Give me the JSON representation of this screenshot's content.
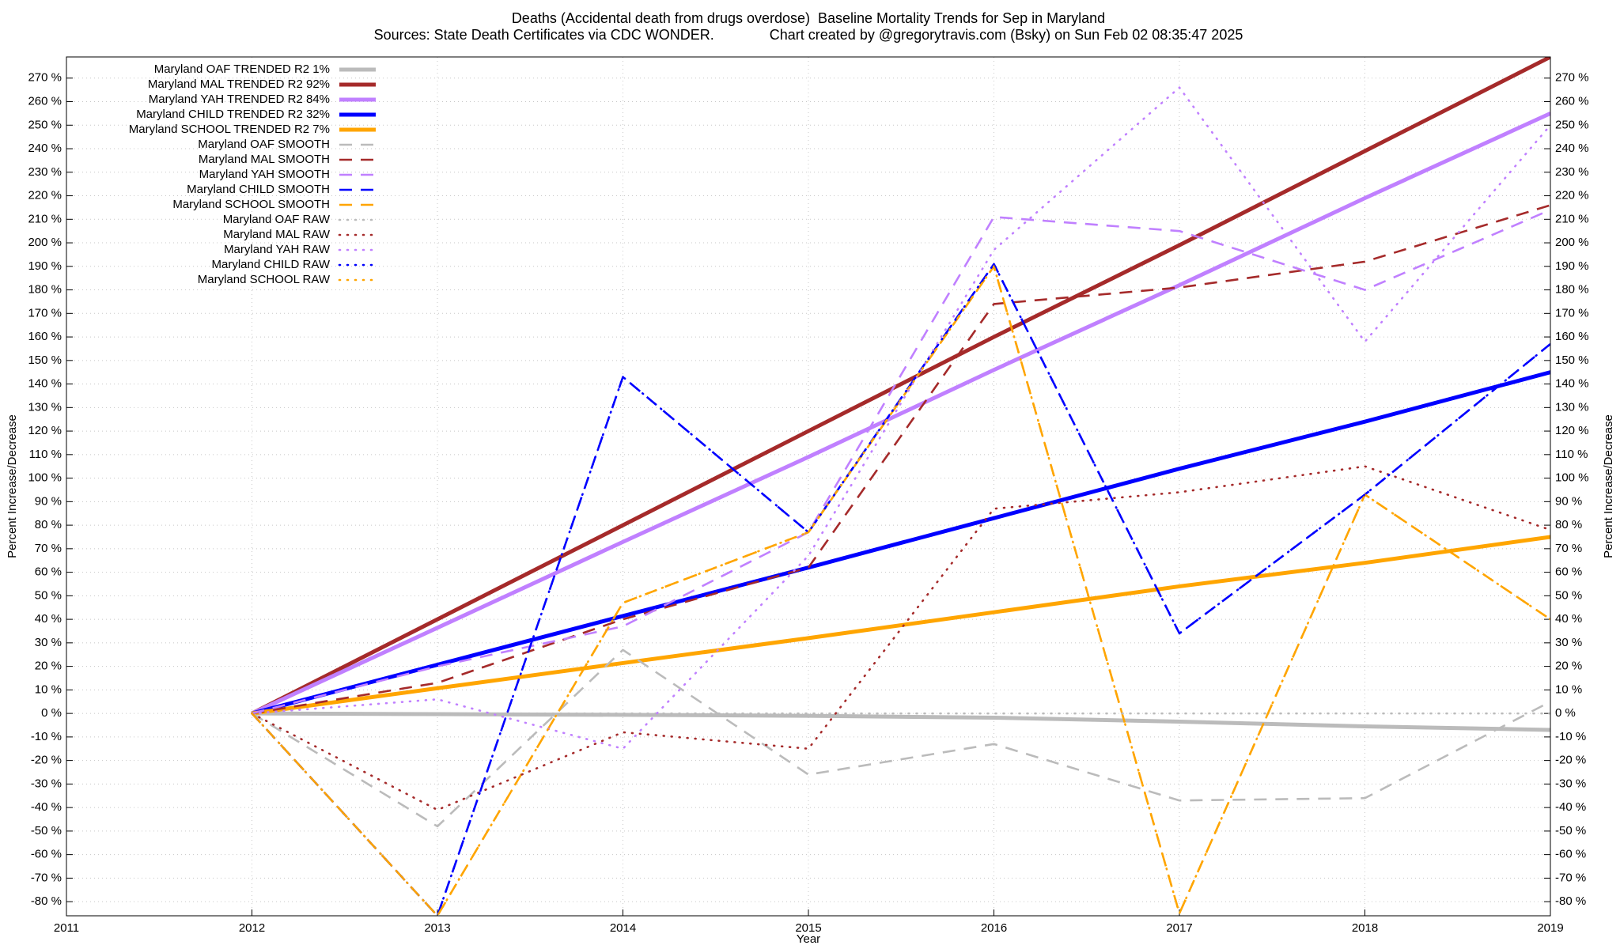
{
  "chart_data": {
    "type": "line",
    "title": "Deaths (Accidental death from drugs overdose)  Baseline Mortality Trends for Sep in Maryland",
    "subtitle": "Sources: State Death Certificates via CDC WONDER.              Chart created by @gregorytravis.com (Bsky) on Sun Feb 02 08:35:47 2025",
    "x_label": "Year",
    "y_label": "Percent Increase/Decrease",
    "y2_label": "Percent Increase/Decrease",
    "x": [
      2012,
      2013,
      2014,
      2015,
      2016,
      2017,
      2018,
      2019
    ],
    "xlim": [
      2011,
      2019
    ],
    "xticks": [
      2011,
      2012,
      2013,
      2014,
      2015,
      2016,
      2017,
      2018,
      2019
    ],
    "ylim": [
      -86,
      279
    ],
    "y2lim": [
      -86,
      279
    ],
    "yticks": [
      {
        "value": -80,
        "label": "-80 %"
      },
      {
        "value": -70,
        "label": "-70 %"
      },
      {
        "value": -60,
        "label": "-60 %"
      },
      {
        "value": -50,
        "label": "-50 %"
      },
      {
        "value": -40,
        "label": "-40 %"
      },
      {
        "value": -30,
        "label": "-30 %"
      },
      {
        "value": -20,
        "label": "-20 %"
      },
      {
        "value": -10,
        "label": "-10 %"
      },
      {
        "value": 0,
        "label": "0 %"
      },
      {
        "value": 10,
        "label": "10 %"
      },
      {
        "value": 20,
        "label": "20 %"
      },
      {
        "value": 30,
        "label": "30 %"
      },
      {
        "value": 40,
        "label": "40 %"
      },
      {
        "value": 50,
        "label": "50 %"
      },
      {
        "value": 60,
        "label": "60 %"
      },
      {
        "value": 70,
        "label": "70 %"
      },
      {
        "value": 80,
        "label": "80 %"
      },
      {
        "value": 90,
        "label": "90 %"
      },
      {
        "value": 100,
        "label": "100 %"
      },
      {
        "value": 110,
        "label": "110 %"
      },
      {
        "value": 120,
        "label": "120 %"
      },
      {
        "value": 130,
        "label": "130 %"
      },
      {
        "value": 140,
        "label": "140 %"
      },
      {
        "value": 150,
        "label": "150 %"
      },
      {
        "value": 160,
        "label": "160 %"
      },
      {
        "value": 170,
        "label": "170 %"
      },
      {
        "value": 180,
        "label": "180 %"
      },
      {
        "value": 190,
        "label": "190 %"
      },
      {
        "value": 200,
        "label": "200 %"
      },
      {
        "value": 210,
        "label": "210 %"
      },
      {
        "value": 220,
        "label": "220 %"
      },
      {
        "value": 230,
        "label": "230 %"
      },
      {
        "value": 240,
        "label": "240 %"
      },
      {
        "value": 250,
        "label": "250 %"
      },
      {
        "value": 260,
        "label": "260 %"
      },
      {
        "value": 270,
        "label": "270 %"
      }
    ],
    "y2ticks": [
      {
        "value": -80,
        "label": "-80 %"
      },
      {
        "value": -70,
        "label": "-70 %"
      },
      {
        "value": -60,
        "label": "-60 %"
      },
      {
        "value": -50,
        "label": "-50 %"
      },
      {
        "value": -40,
        "label": "-40 %"
      },
      {
        "value": -30,
        "label": "-30 %"
      },
      {
        "value": -20,
        "label": "-20 %"
      },
      {
        "value": -10,
        "label": "-10 %"
      },
      {
        "value": 0,
        "label": "0 %"
      },
      {
        "value": 10,
        "label": "10 %"
      },
      {
        "value": 20,
        "label": "20 %"
      },
      {
        "value": 30,
        "label": "30 %"
      },
      {
        "value": 40,
        "label": "40 %"
      },
      {
        "value": 50,
        "label": "50 %"
      },
      {
        "value": 60,
        "label": "60 %"
      },
      {
        "value": 70,
        "label": "70 %"
      },
      {
        "value": 80,
        "label": "80 %"
      },
      {
        "value": 90,
        "label": "90 %"
      },
      {
        "value": 100,
        "label": "100 %"
      },
      {
        "value": 110,
        "label": "110 %"
      },
      {
        "value": 120,
        "label": "120 %"
      },
      {
        "value": 130,
        "label": "130 %"
      },
      {
        "value": 140,
        "label": "140 %"
      },
      {
        "value": 150,
        "label": "150 %"
      },
      {
        "value": 160,
        "label": "160 %"
      },
      {
        "value": 170,
        "label": "170 %"
      },
      {
        "value": 180,
        "label": "180 %"
      },
      {
        "value": 190,
        "label": "190 %"
      },
      {
        "value": 200,
        "label": "200 %"
      },
      {
        "value": 210,
        "label": "210 %"
      },
      {
        "value": 220,
        "label": "220 %"
      },
      {
        "value": 230,
        "label": "230 %"
      },
      {
        "value": 240,
        "label": "240 %"
      },
      {
        "value": 250,
        "label": "250 %"
      },
      {
        "value": 260,
        "label": "260 %"
      },
      {
        "value": 270,
        "label": "270 %"
      }
    ],
    "grid": true,
    "legend": "upper left",
    "series": [
      {
        "name": "Maryland OAF TRENDED R2  1%",
        "color": "#bbbbbb",
        "dash": "solid",
        "values": [
          0,
          -0.3,
          -0.6,
          -1,
          -1.8,
          -3.5,
          -5.5,
          -7
        ]
      },
      {
        "name": "Maryland MAL TRENDED R2  92%",
        "color": "#a52a2a",
        "dash": "solid",
        "values": [
          0,
          40,
          80,
          120,
          160,
          199,
          239,
          279
        ]
      },
      {
        "name": "Maryland YAH TRENDED R2  84%",
        "color": "#c080ff",
        "dash": "solid",
        "values": [
          0,
          36.4,
          72.9,
          109,
          146,
          182,
          219,
          255
        ]
      },
      {
        "name": "Maryland CHILD TRENDED R2  32%",
        "color": "#0000ff",
        "dash": "solid",
        "values": [
          0,
          20.7,
          41.4,
          62,
          83,
          104,
          124,
          145
        ]
      },
      {
        "name": "Maryland SCHOOL TRENDED R2  7%",
        "color": "#ffa500",
        "dash": "solid",
        "values": [
          0,
          10.7,
          21.4,
          32,
          43,
          54,
          64,
          75
        ]
      },
      {
        "name": "Maryland OAF SMOOTH",
        "color": "#bbbbbb",
        "dash": "dashed",
        "values": [
          0,
          -48,
          27,
          -26,
          -13,
          -37,
          -36,
          5
        ]
      },
      {
        "name": "Maryland MAL SMOOTH",
        "color": "#a52a2a",
        "dash": "dashed",
        "values": [
          0,
          13,
          40,
          62,
          174,
          181,
          192,
          216
        ]
      },
      {
        "name": "Maryland YAH SMOOTH",
        "color": "#c080ff",
        "dash": "dashed",
        "values": [
          0,
          20,
          37,
          77,
          211,
          205,
          180,
          214
        ]
      },
      {
        "name": "Maryland CHILD SMOOTH",
        "color": "#0000ff",
        "dash": "dashed",
        "values": [
          0,
          -86,
          143,
          77,
          191,
          34,
          93,
          157
        ]
      },
      {
        "name": "Maryland SCHOOL SMOOTH",
        "color": "#ffa500",
        "dash": "dashed",
        "values": [
          0,
          -86,
          47,
          77,
          190,
          -85,
          93,
          40
        ]
      },
      {
        "name": "Maryland OAF RAW",
        "color": "#bbbbbb",
        "dash": "dotted",
        "values": [
          0,
          0,
          0,
          0,
          0,
          0,
          0,
          0
        ]
      },
      {
        "name": "Maryland MAL RAW",
        "color": "#a52a2a",
        "dash": "dotted",
        "values": [
          0,
          -41,
          -8,
          -15,
          87,
          94,
          105,
          78
        ]
      },
      {
        "name": "Maryland YAH RAW",
        "color": "#c080ff",
        "dash": "dotted",
        "values": [
          0,
          6,
          -15,
          67,
          197,
          266,
          158,
          250
        ]
      },
      {
        "name": "Maryland CHILD RAW",
        "color": "#0000ff",
        "dash": "dotted",
        "values": [
          0,
          -86,
          143,
          77,
          191,
          34,
          93,
          157
        ]
      },
      {
        "name": "Maryland SCHOOL RAW",
        "color": "#ffa500",
        "dash": "dotted",
        "values": [
          0,
          -86,
          47,
          77,
          190,
          -85,
          93,
          40
        ]
      }
    ]
  }
}
